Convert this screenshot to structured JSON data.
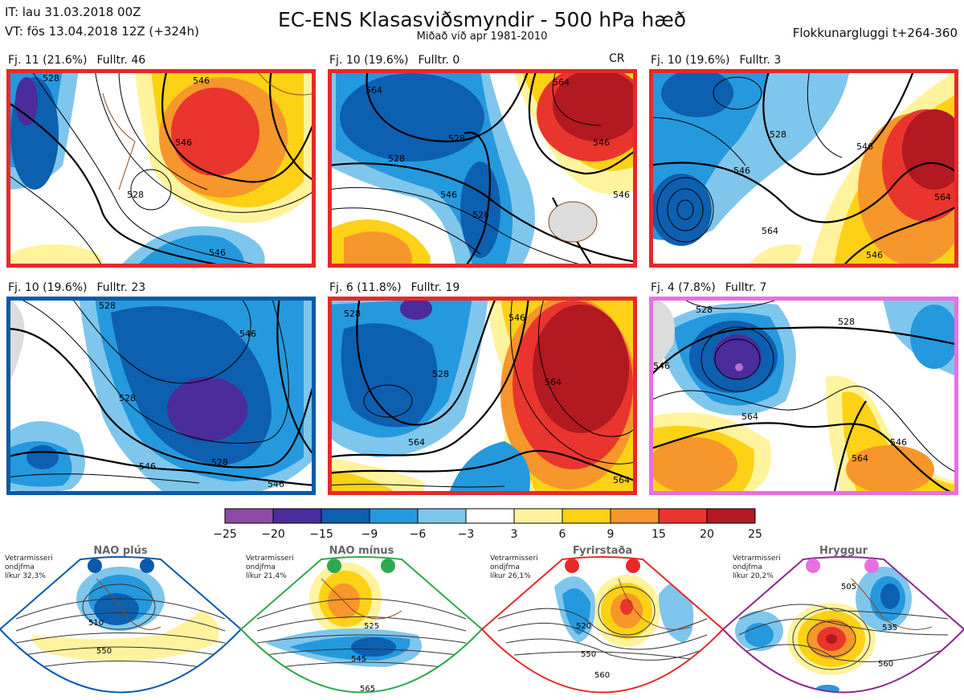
{
  "header": {
    "it": "IT: lau 31.03.2018 00Z",
    "vt": "VT: fös 13.04.2018 12Z  (+324h)",
    "title": "EC-ENS Klasasviðsmyndir - 500 hPa hæð",
    "subtitle": "Miðað við apr 1981-2010",
    "window": "Flokkunargluggi t+264-360"
  },
  "panels": [
    {
      "fj": "Fj. 11 (21.6%)",
      "fulltr": "Fulltr. 46",
      "tag": "",
      "color": "#e8282b",
      "contour_labels": [
        "528",
        "546",
        "546",
        "546",
        "528"
      ]
    },
    {
      "fj": "Fj. 10 (19.6%)",
      "fulltr": "Fulltr. 0",
      "tag": "CR",
      "color": "#e8282b",
      "contour_labels": [
        "564",
        "528",
        "528",
        "546",
        "546",
        "564",
        "528",
        "546"
      ]
    },
    {
      "fj": "Fj. 10 (19.6%)",
      "fulltr": "Fulltr. 3",
      "tag": "",
      "color": "#e8282b",
      "contour_labels": [
        "528",
        "546",
        "546",
        "564",
        "564",
        "546"
      ]
    },
    {
      "fj": "Fj. 10 (19.6%)",
      "fulltr": "Fulltr. 23",
      "tag": "",
      "color": "#0a5aa8",
      "contour_labels": [
        "528",
        "546",
        "528",
        "546",
        "546",
        "528"
      ]
    },
    {
      "fj": "Fj. 6 (11.8%)",
      "fulltr": "Fulltr. 19",
      "tag": "",
      "color": "#e8282b",
      "contour_labels": [
        "528",
        "546",
        "528",
        "564",
        "564",
        "564"
      ]
    },
    {
      "fj": "Fj. 4 (7.8%)",
      "fulltr": "Fulltr. 7",
      "tag": "",
      "color": "#e96fe0",
      "contour_labels": [
        "528",
        "528",
        "564",
        "546",
        "564",
        "546"
      ]
    }
  ],
  "colorbar": {
    "ticks": [
      "−25",
      "−20",
      "−15",
      "−9",
      "−6",
      "−3",
      "3",
      "6",
      "9",
      "15",
      "20",
      "25"
    ],
    "colors": [
      "#8e4aa6",
      "#4b2c9c",
      "#0d5fb0",
      "#2599dd",
      "#7fc6ec",
      "#ffffff",
      "#fff39e",
      "#fcd116",
      "#f7962b",
      "#e9352d",
      "#b21921"
    ]
  },
  "regimes": [
    {
      "name": "NAO plús",
      "note": [
        "Vetrarmisseri",
        "ondjfma",
        "líkur 32,3%"
      ],
      "border": "#0a5aa8",
      "dot": "#0a5aa8",
      "labels": [
        "510",
        "550"
      ]
    },
    {
      "name": "NAO mínus",
      "note": [
        "Vetrarmisseri",
        "ondjfma",
        "líkur 21,4%"
      ],
      "border": "#2fa84f",
      "dot": "#2fa84f",
      "labels": [
        "525",
        "545",
        "565"
      ]
    },
    {
      "name": "Fyrirstaða",
      "note": [
        "Vetrarmisseri",
        "ondjfma",
        "líkur 26,1%"
      ],
      "border": "#e8282b",
      "dot": "#e8282b",
      "labels": [
        "520",
        "550",
        "560"
      ]
    },
    {
      "name": "Hryggur",
      "note": [
        "Vetrarmisseri",
        "ondjfma",
        "líkur 20,2%"
      ],
      "border": "#8b2a8f",
      "dot": "#e96fe0",
      "labels": [
        "505",
        "535",
        "560"
      ]
    }
  ],
  "chart_data": {
    "type": "heatmap",
    "title": "EC-ENS Klasasviðsmyndir - 500 hPa hæð",
    "subtitle": "Miðað við apr 1981-2010",
    "colorbar_levels": [
      -25,
      -20,
      -15,
      -9,
      -6,
      -3,
      3,
      6,
      9,
      15,
      20,
      25
    ],
    "clusters": [
      {
        "cluster": "Fj. 11",
        "percent": 21.6,
        "representative": 46
      },
      {
        "cluster": "Fj. 10",
        "percent": 19.6,
        "representative": 0
      },
      {
        "cluster": "Fj. 10",
        "percent": 19.6,
        "representative": 3
      },
      {
        "cluster": "Fj. 10",
        "percent": 19.6,
        "representative": 23
      },
      {
        "cluster": "Fj. 6",
        "percent": 11.8,
        "representative": 19
      },
      {
        "cluster": "Fj. 4",
        "percent": 7.8,
        "representative": 7
      }
    ],
    "climatological_regimes": [
      {
        "name": "NAO plús",
        "probability_percent": 32.3
      },
      {
        "name": "NAO mínus",
        "probability_percent": 21.4
      },
      {
        "name": "Fyrirstaða",
        "probability_percent": 26.1
      },
      {
        "name": "Hryggur",
        "probability_percent": 20.2
      }
    ]
  }
}
